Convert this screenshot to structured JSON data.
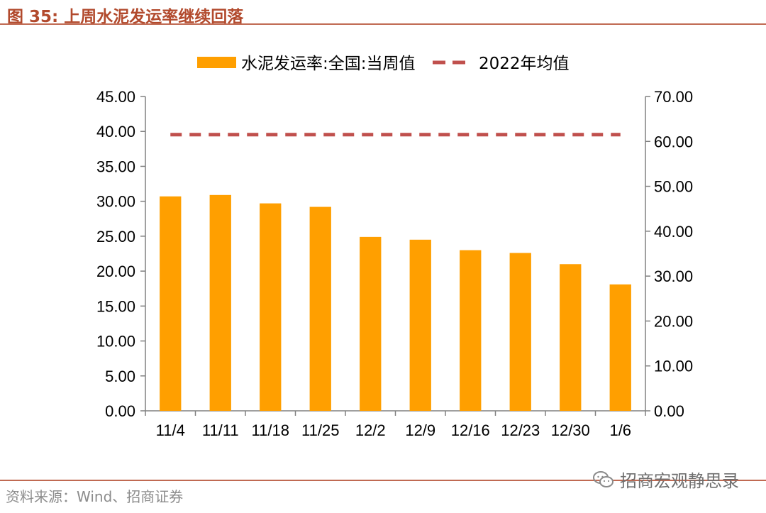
{
  "figure": {
    "title": "图 35:  上周水泥发运率继续回落",
    "source": "资料来源：Wind、招商证券",
    "watermark": {
      "text": "招商宏观静思录",
      "icon": "wechat-icon"
    }
  },
  "colors": {
    "bar": "#ff9f00",
    "line": "#c0504d",
    "header_accent": "#b24a2d",
    "axis": "#808080",
    "text": "#000000"
  },
  "chart_data": {
    "type": "bar",
    "title": "",
    "categories": [
      "11/4",
      "11/11",
      "11/18",
      "11/25",
      "12/2",
      "12/9",
      "12/16",
      "12/23",
      "12/30",
      "1/6"
    ],
    "series": [
      {
        "name": "水泥发运率:全国:当周值",
        "type": "bar",
        "axis": "left",
        "values": [
          30.7,
          30.9,
          29.7,
          29.2,
          24.9,
          24.5,
          23.0,
          22.6,
          21.0,
          18.1
        ]
      },
      {
        "name": "2022年均值",
        "type": "line",
        "style": "dashed",
        "axis": "right",
        "values": [
          61.5,
          61.5,
          61.5,
          61.5,
          61.5,
          61.5,
          61.5,
          61.5,
          61.5,
          61.5
        ]
      }
    ],
    "y_left": {
      "min": 0,
      "max": 45,
      "step": 5,
      "ticks": [
        "0.00",
        "5.00",
        "10.00",
        "15.00",
        "20.00",
        "25.00",
        "30.00",
        "35.00",
        "40.00",
        "45.00"
      ]
    },
    "y_right": {
      "min": 0,
      "max": 70,
      "step": 10,
      "ticks": [
        "0.00",
        "10.00",
        "20.00",
        "30.00",
        "40.00",
        "50.00",
        "60.00",
        "70.00"
      ]
    },
    "xlabel": "",
    "ylabel": "",
    "grid": false,
    "legend": "top-center"
  }
}
